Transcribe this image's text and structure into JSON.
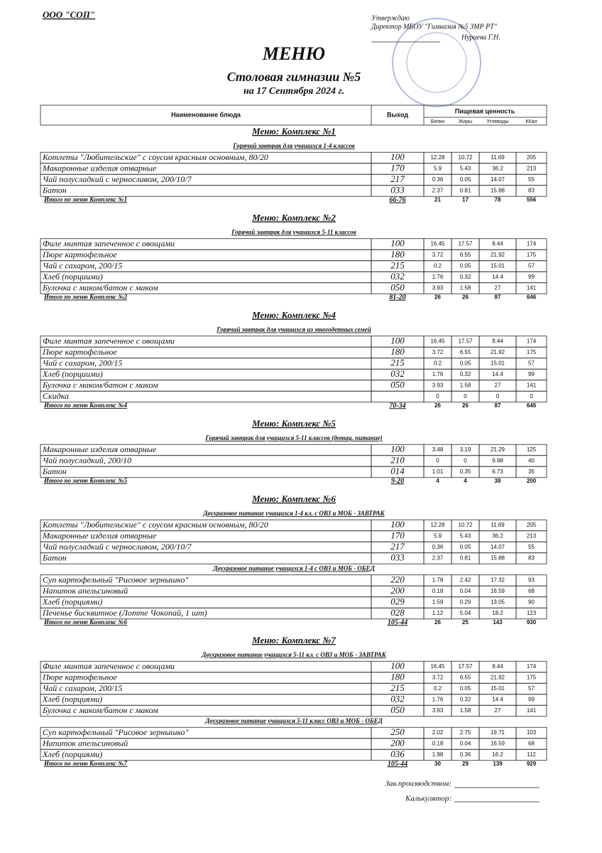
{
  "header": {
    "company": "ООО \"СОП\"",
    "approve": "Утверждаю",
    "director": "Директор МБОУ \"Гимназия №5 ЗМР РТ\"",
    "signer": "Нуриева Г.Н.",
    "title": "МЕНЮ",
    "subtitle": "Столовая гимназии №5",
    "date": "на 17 Сентября 2024 г."
  },
  "table_header": {
    "name": "Наименование блюда",
    "output": "Выход",
    "nutrition": "Пищевая ценность",
    "columns": [
      "Белки",
      "Жиры",
      "Углеводы",
      "ККал"
    ]
  },
  "sections": [
    {
      "title": "Меню: Комплекс №1",
      "groups": [
        {
          "subtitle": "Горячий завтрак для учащихся 1-4 классов",
          "rows": [
            [
              "Котлеты  \"Любительские\" с соусом красным основным, 80/20",
              "100",
              "12.28",
              "10.72",
              "11.69",
              "205"
            ],
            [
              "Макаронные изделия отварные",
              "170",
              "5.9",
              "5.43",
              "36.2",
              "213"
            ],
            [
              "Чай полусладкий с черносливом, 200/10/7",
              "217",
              "0.36",
              "0.05",
              "14.07",
              "55"
            ],
            [
              "Батон",
              "033",
              "2.37",
              "0.81",
              "15.88",
              "83"
            ]
          ]
        }
      ],
      "total": [
        "Итого по меню Комплекс №1",
        "66-76",
        "21",
        "17",
        "78",
        "556"
      ]
    },
    {
      "title": "Меню: Комплекс №2",
      "groups": [
        {
          "subtitle": "Горячий завтрак для учащихся 5-11 классов",
          "rows": [
            [
              "Филе минтая запеченное с овощами",
              "100",
              "16.45",
              "17.57",
              "8.44",
              "174"
            ],
            [
              "Пюре картофельное",
              "180",
              "3.72",
              "6.55",
              "21.92",
              "175"
            ],
            [
              "Чай с сахаром, 200/15",
              "215",
              "0.2",
              "0.05",
              "15.01",
              "57"
            ],
            [
              "Хлеб (порциими)",
              "032",
              "1.76",
              "0.32",
              "14.4",
              "99"
            ],
            [
              "Булочка с маком/батон с маком",
              "050",
              "3.93",
              "1.58",
              "27",
              "141"
            ]
          ]
        }
      ],
      "total": [
        "Итого по меню Комплекс №2",
        "81-20",
        "26",
        "26",
        "87",
        "646"
      ]
    },
    {
      "title": "Меню: Комплекс №4",
      "groups": [
        {
          "subtitle": "Горячий завтрак для учащихся из многодетных семей",
          "rows": [
            [
              "Филе минтая запеченное с овощами",
              "100",
              "16.45",
              "17.57",
              "8.44",
              "174"
            ],
            [
              "Пюре картофельное",
              "180",
              "3.72",
              "6.55",
              "21.92",
              "175"
            ],
            [
              "Чай с сахаром, 200/15",
              "215",
              "0.2",
              "0.05",
              "15.01",
              "57"
            ],
            [
              "Хлеб (порциими)",
              "032",
              "1.76",
              "0.32",
              "14.4",
              "99"
            ],
            [
              "Булочка с маком/батон с маком",
              "050",
              "3.93",
              "1.58",
              "27",
              "141"
            ],
            [
              "Скидка",
              null,
              "0",
              "0",
              "0",
              "0"
            ]
          ]
        }
      ],
      "total": [
        "Итого по меню Комплекс №4",
        "70-34",
        "26",
        "26",
        "87",
        "646"
      ]
    },
    {
      "title": "Меню: Комплекс №5",
      "groups": [
        {
          "subtitle": "Горячий завтрак для учащихся 5-11 классов (дотац. питание)",
          "rows": [
            [
              "Макаронные изделия отварные",
              "100",
              "3.48",
              "3.19",
              "21.29",
              "125"
            ],
            [
              "Чай полусладкий, 200/10",
              "210",
              "0",
              "0",
              "9.98",
              "40"
            ],
            [
              "Батон",
              "014",
              "1.01",
              "0.35",
              "6.73",
              "35"
            ]
          ]
        }
      ],
      "total": [
        "Итого по меню Комплекс №5",
        "9-20",
        "4",
        "4",
        "38",
        "200"
      ]
    },
    {
      "title": "Меню: Комплекс №6",
      "groups": [
        {
          "subtitle": "Двухразовое питание учащихся 1-4 кл. с ОВЗ и МОБ - ЗАВТРАК",
          "rows": [
            [
              "Котлеты  \"Любительские\" с соусом красным основным, 80/20",
              "100",
              "12.28",
              "10.72",
              "11.69",
              "205"
            ],
            [
              "Макаронные изделия отварные",
              "170",
              "5.9",
              "5.43",
              "36.2",
              "213"
            ],
            [
              "Чай полусладкий с черносливом, 200/10/7",
              "217",
              "0.36",
              "0.05",
              "14.07",
              "55"
            ],
            [
              "Батон",
              "033",
              "2.37",
              "0.81",
              "15.88",
              "83"
            ]
          ]
        },
        {
          "subtitle": "Двухразовое питание учащихся 1-4 с ОВЗ и МОБ - ОБЕД",
          "rows": [
            [
              "Суп картофельный \"Рисовое зернышко\"",
              "220",
              "1.78",
              "2.42",
              "17.32",
              "93"
            ],
            [
              "Напиток апельсиновый",
              "200",
              "0.18",
              "0.04",
              "16.59",
              "68"
            ],
            [
              "Хлеб (порциями)",
              "029",
              "1.59",
              "0.29",
              "13.05",
              "90"
            ],
            [
              "Печенье бисквитное (Лотте Чокопай, 1 шт)",
              "028",
              "1.12",
              "5.04",
              "18.2",
              "123"
            ]
          ]
        }
      ],
      "total": [
        "Итого по меню Комплекс №6",
        "105-44",
        "26",
        "25",
        "143",
        "930"
      ]
    },
    {
      "title": "Меню: Комплекс №7",
      "groups": [
        {
          "subtitle": "Двухразовое питание учащихся 5-11 кл. с  ОВЗ и МОБ - ЗАВТРАК",
          "rows": [
            [
              "Филе минтая запеченное с овощами",
              "100",
              "16.45",
              "17.57",
              "8.44",
              "174"
            ],
            [
              "Пюре картофельное",
              "180",
              "3.72",
              "6.55",
              "21.92",
              "175"
            ],
            [
              "Чай с сахаром, 200/15",
              "215",
              "0.2",
              "0.05",
              "15.01",
              "57"
            ],
            [
              "Хлеб (порциями)",
              "032",
              "1.76",
              "0.32",
              "14.4",
              "99"
            ],
            [
              "Булочка с маком/батон с маком",
              "050",
              "3.93",
              "1.58",
              "27",
              "141"
            ]
          ]
        },
        {
          "subtitle": "Двухразовое питание учащихся 5-11 класс ОВЗ и МОБ - ОБЕД",
          "rows": [
            [
              "Суп картофельный \"Рисовое зернышко\"",
              "250",
              "2.02",
              "2.75",
              "19.71",
              "103"
            ],
            [
              "Напиток апельсиновый",
              "200",
              "0.18",
              "0.04",
              "16.59",
              "68"
            ],
            [
              "Хлеб (порциями)",
              "036",
              "1.98",
              "0.36",
              "16.2",
              "112"
            ]
          ]
        }
      ],
      "total": [
        "Итого по меню Комплекс №7",
        "105-44",
        "30",
        "29",
        "139",
        "929"
      ]
    }
  ],
  "footer": {
    "manager": "Зав.производством:",
    "calculator": "Калькулятор:"
  }
}
